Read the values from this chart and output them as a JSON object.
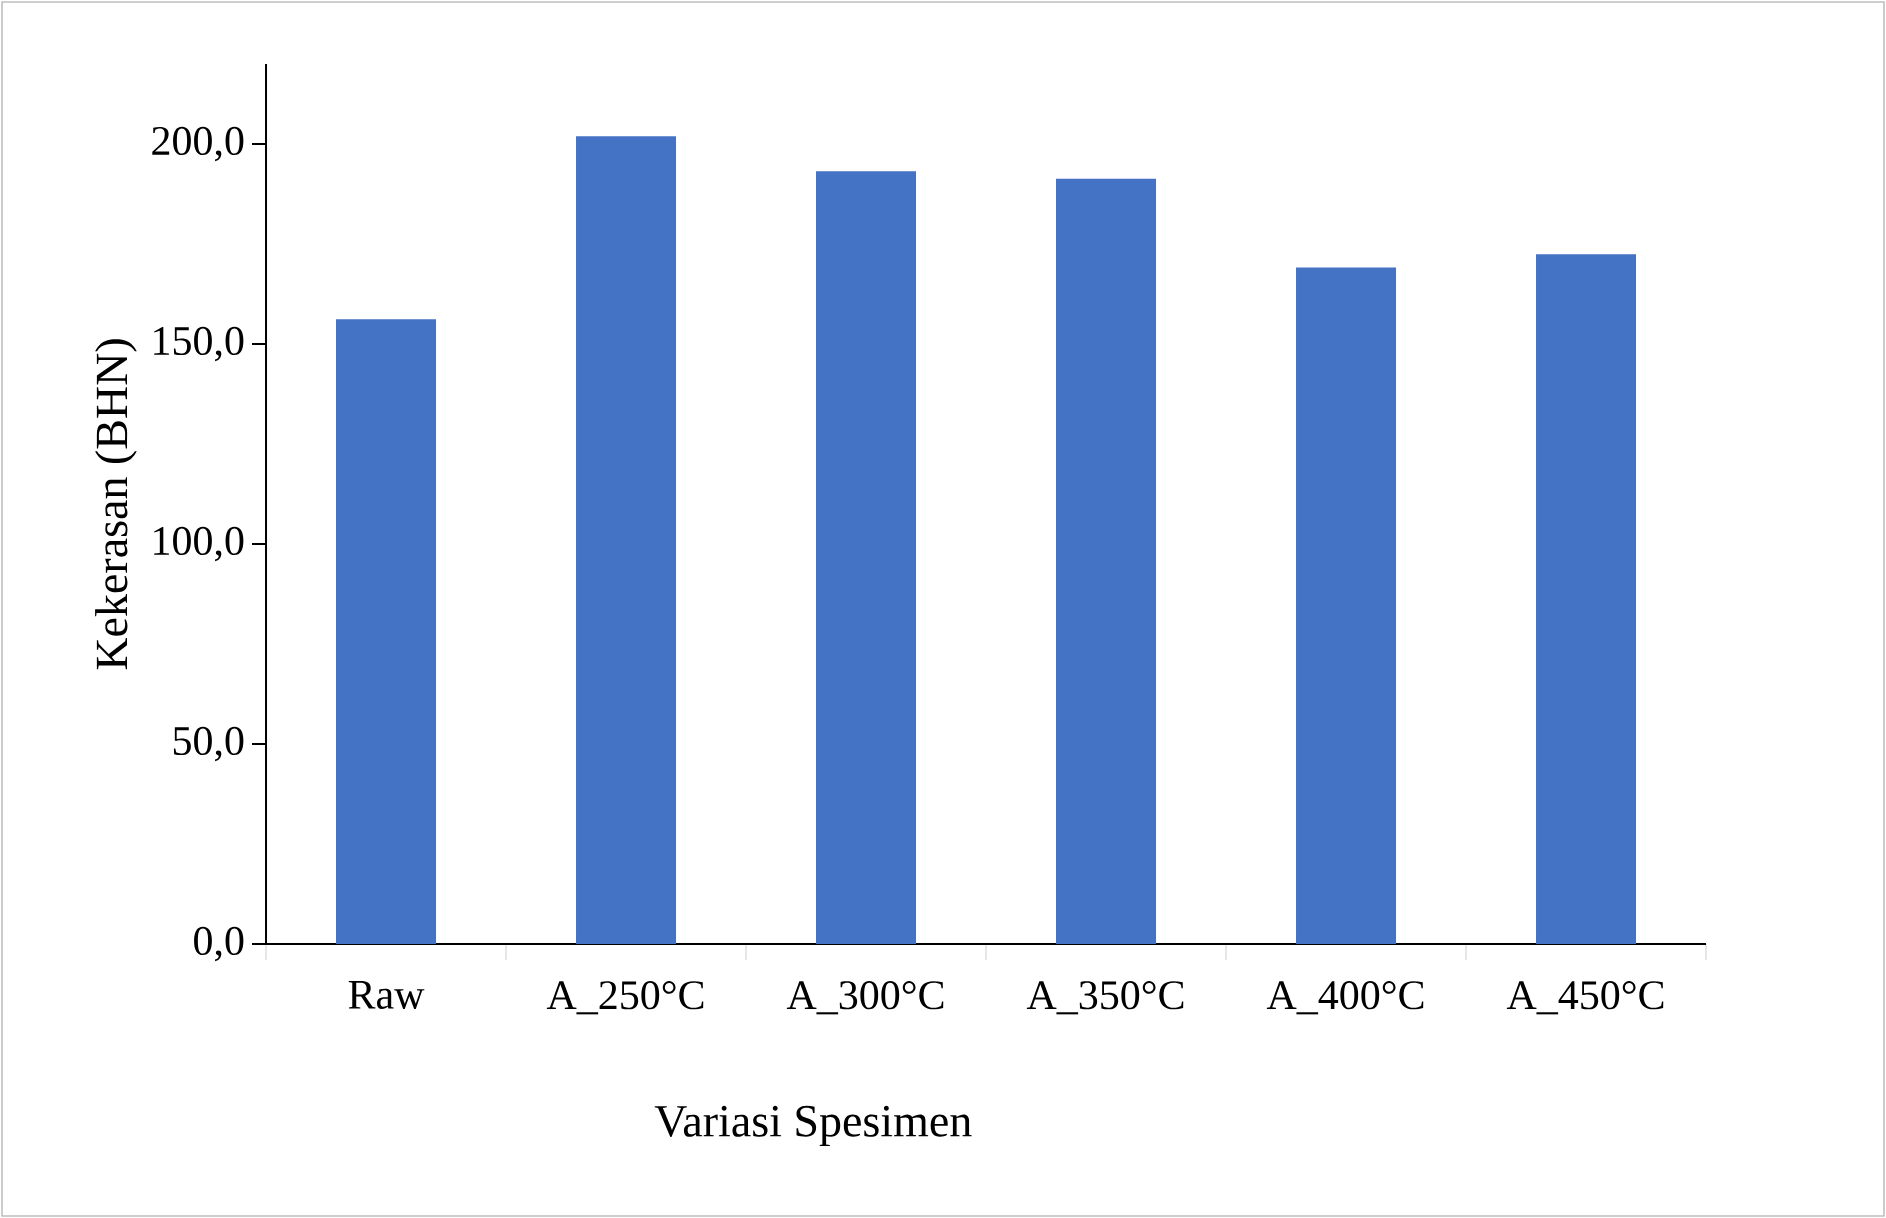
{
  "chart_data": {
    "type": "bar",
    "xlabel": "Variasi Spesimen",
    "ylabel": "Kekerasan (BHN)",
    "categories": [
      "Raw",
      "A_250°C",
      "A_300°C",
      "A_350°C",
      "A_400°C",
      "A_450°C"
    ],
    "values": [
      156.2,
      201.9,
      193.2,
      191.3,
      169.1,
      172.4
    ],
    "color": "#4472c4",
    "ylim": [
      0,
      220
    ],
    "yticks": [
      {
        "value": 0,
        "label": "0,0"
      },
      {
        "value": 50,
        "label": "50,0"
      },
      {
        "value": 100,
        "label": "100,0"
      },
      {
        "value": 150,
        "label": "150,0"
      },
      {
        "value": 200,
        "label": "200,0"
      }
    ],
    "grid": false
  }
}
